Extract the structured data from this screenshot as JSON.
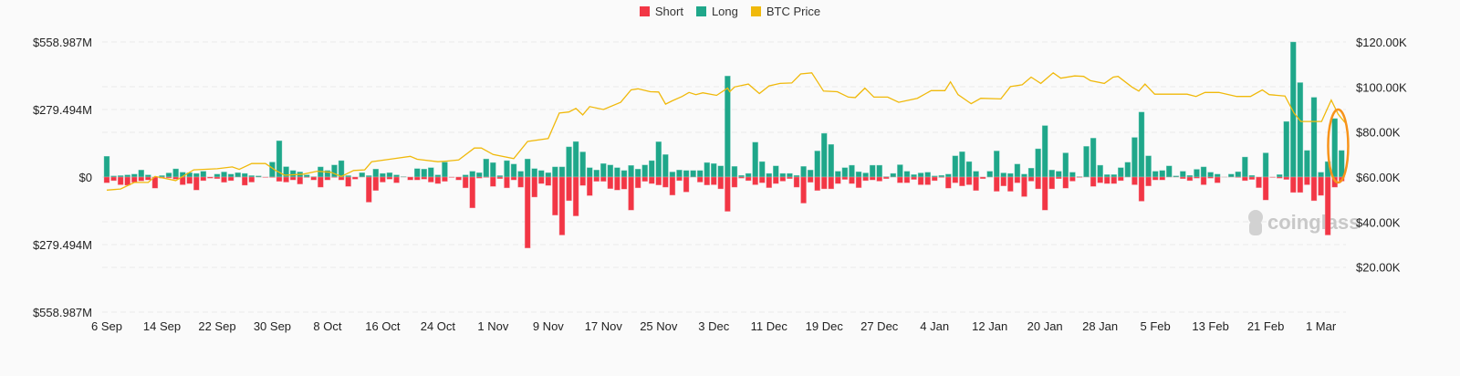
{
  "chart_data": {
    "type": "bar",
    "title": "",
    "legend": {
      "position": "top-center",
      "items": [
        {
          "name": "Short",
          "color": "#f23645"
        },
        {
          "name": "Long",
          "color": "#1fa78a"
        },
        {
          "name": "BTC Price",
          "color": "#f0b90b"
        }
      ]
    },
    "x_tick_labels": [
      "6 Sep",
      "14 Sep",
      "22 Sep",
      "30 Sep",
      "8 Oct",
      "16 Oct",
      "24 Oct",
      "1 Nov",
      "9 Nov",
      "17 Nov",
      "25 Nov",
      "3 Dec",
      "11 Dec",
      "19 Dec",
      "27 Dec",
      "4 Jan",
      "12 Jan",
      "20 Jan",
      "28 Jan",
      "5 Feb",
      "13 Feb",
      "21 Feb",
      "1 Mar"
    ],
    "x_tick_every_days": 8,
    "left_axis": {
      "unit": "USD millions",
      "ylim": [
        -558.987,
        558.987
      ],
      "tick_labels": [
        "$558.987M",
        "$279.494M",
        "$0",
        "$279.494M",
        "$558.987M"
      ],
      "tick_values": [
        558.987,
        279.494,
        0,
        -279.494,
        -558.987
      ]
    },
    "right_axis": {
      "unit": "USD thousands",
      "ylim": [
        0,
        120
      ],
      "tick_labels": [
        "$120.00K",
        "$100.00K",
        "$80.00K",
        "$60.00K",
        "$40.00K",
        "$20.00K"
      ],
      "tick_values": [
        120,
        100,
        80,
        60,
        40,
        20
      ]
    },
    "grid": true,
    "series": [
      {
        "name": "Long",
        "axis": "left",
        "direction": "up",
        "values": [
          86,
          5,
          6,
          9,
          12,
          29,
          9,
          0,
          6,
          17,
          34,
          20,
          18,
          15,
          24,
          0,
          12,
          21,
          12,
          18,
          15,
          6,
          5,
          0,
          62,
          150,
          43,
          27,
          21,
          9,
          2,
          42,
          27,
          50,
          68,
          6,
          0,
          18,
          6,
          33,
          15,
          18,
          9,
          2,
          0,
          35,
          33,
          39,
          9,
          62,
          0,
          0,
          9,
          24,
          18,
          75,
          60,
          6,
          68,
          54,
          24,
          75,
          35,
          27,
          18,
          42,
          42,
          125,
          147,
          104,
          39,
          29,
          56,
          50,
          39,
          27,
          48,
          33,
          50,
          68,
          146,
          93,
          21,
          29,
          27,
          27,
          27,
          60,
          56,
          46,
          418,
          44,
          7,
          15,
          144,
          64,
          15,
          46,
          15,
          15,
          7,
          44,
          29,
          108,
          181,
          135,
          24,
          39,
          49,
          22,
          17,
          49,
          49,
          2,
          15,
          51,
          24,
          10,
          17,
          20,
          5,
          7,
          12,
          88,
          105,
          64,
          24,
          0,
          24,
          108,
          17,
          15,
          54,
          12,
          37,
          117,
          213,
          29,
          24,
          100,
          20,
          2,
          127,
          161,
          49,
          10,
          10,
          39,
          61,
          164,
          269,
          88,
          24,
          27,
          46,
          5,
          24,
          7,
          32,
          42,
          20,
          12,
          0,
          12,
          22,
          83,
          7,
          0,
          100,
          0,
          10,
          230,
          559,
          391,
          110,
          330,
          20,
          64,
          242,
          110
        ]
      },
      {
        "name": "Short",
        "axis": "left",
        "direction": "down",
        "values": [
          24,
          15,
          32,
          34,
          22,
          16,
          12,
          46,
          5,
          4,
          9,
          32,
          27,
          54,
          15,
          5,
          7,
          22,
          15,
          0,
          34,
          21,
          0,
          2,
          2,
          18,
          21,
          12,
          29,
          2,
          12,
          42,
          12,
          2,
          12,
          39,
          9,
          0,
          104,
          56,
          21,
          9,
          24,
          0,
          12,
          12,
          9,
          21,
          27,
          18,
          2,
          12,
          45,
          128,
          5,
          2,
          39,
          7,
          45,
          12,
          42,
          294,
          83,
          27,
          35,
          158,
          240,
          98,
          161,
          35,
          77,
          18,
          18,
          48,
          54,
          50,
          137,
          45,
          18,
          27,
          33,
          42,
          75,
          15,
          62,
          0,
          21,
          33,
          32,
          49,
          142,
          42,
          5,
          15,
          32,
          24,
          44,
          27,
          17,
          7,
          42,
          108,
          22,
          56,
          49,
          49,
          27,
          10,
          27,
          44,
          15,
          12,
          17,
          7,
          0,
          24,
          24,
          10,
          32,
          32,
          15,
          2,
          46,
          24,
          37,
          32,
          56,
          7,
          0,
          59,
          37,
          59,
          24,
          81,
          17,
          49,
          137,
          49,
          7,
          46,
          17,
          2,
          0,
          39,
          24,
          27,
          27,
          15,
          0,
          32,
          100,
          37,
          12,
          12,
          0,
          0,
          7,
          15,
          5,
          32,
          5,
          24,
          0,
          0,
          2,
          15,
          10,
          44,
          95,
          2,
          5,
          10,
          64,
          64,
          32,
          98,
          76,
          240,
          42,
          17
        ]
      },
      {
        "name": "BTC Price",
        "axis": "right",
        "type": "line",
        "points": [
          [
            0,
            54.2
          ],
          [
            2,
            54.7
          ],
          [
            4,
            57.6
          ],
          [
            6,
            57.6
          ],
          [
            7,
            60.3
          ],
          [
            10,
            58.4
          ],
          [
            12.6,
            63.2
          ],
          [
            16,
            63.7
          ],
          [
            18.2,
            64.5
          ],
          [
            19.2,
            63.4
          ],
          [
            21,
            66
          ],
          [
            23,
            66
          ],
          [
            24.5,
            62.9
          ],
          [
            25.8,
            60.8
          ],
          [
            28.5,
            61.3
          ],
          [
            30.5,
            62.6
          ],
          [
            32.5,
            62.1
          ],
          [
            34,
            60.3
          ],
          [
            35.8,
            62.9
          ],
          [
            37.4,
            63.2
          ],
          [
            38.4,
            66.8
          ],
          [
            41,
            67.9
          ],
          [
            44,
            69.2
          ],
          [
            45,
            67.9
          ],
          [
            48,
            66.8
          ],
          [
            49.3,
            67.1
          ],
          [
            51,
            67.6
          ],
          [
            53.3,
            72.9
          ],
          [
            54.3,
            72.9
          ],
          [
            56,
            70
          ],
          [
            59,
            68.2
          ],
          [
            61,
            75.8
          ],
          [
            64,
            77.1
          ],
          [
            65.6,
            88.4
          ],
          [
            67,
            88.9
          ],
          [
            68,
            90.5
          ],
          [
            69,
            87.6
          ],
          [
            70,
            91.3
          ],
          [
            72,
            90
          ],
          [
            74.5,
            93.2
          ],
          [
            76,
            98.7
          ],
          [
            77,
            99.2
          ],
          [
            78.8,
            97.9
          ],
          [
            80,
            97.8
          ],
          [
            81,
            92.4
          ],
          [
            82,
            93.9
          ],
          [
            83.4,
            95.8
          ],
          [
            84.4,
            97.6
          ],
          [
            85.4,
            96.6
          ],
          [
            86.4,
            97.4
          ],
          [
            88.4,
            96.3
          ],
          [
            90,
            99.5
          ],
          [
            90.3,
            97.9
          ],
          [
            91,
            100
          ],
          [
            93,
            101.3
          ],
          [
            94.6,
            97.1
          ],
          [
            96,
            100.5
          ],
          [
            97.6,
            101.6
          ],
          [
            99.3,
            101.8
          ],
          [
            100.6,
            105.8
          ],
          [
            102.2,
            106.3
          ],
          [
            103.9,
            98.2
          ],
          [
            105.9,
            97.9
          ],
          [
            107.5,
            95.5
          ],
          [
            108.5,
            95.3
          ],
          [
            109.9,
            99.5
          ],
          [
            111.2,
            95.5
          ],
          [
            113.2,
            95.5
          ],
          [
            114.8,
            93.2
          ],
          [
            117.5,
            95
          ],
          [
            119.5,
            98.4
          ],
          [
            121.5,
            98.4
          ],
          [
            122.3,
            102.3
          ],
          [
            123.4,
            96.6
          ],
          [
            125.3,
            92.6
          ],
          [
            126.7,
            95
          ],
          [
            129.6,
            94.7
          ],
          [
            131,
            100.2
          ],
          [
            132.7,
            101
          ],
          [
            134,
            104.4
          ],
          [
            135.4,
            101.6
          ],
          [
            137.2,
            106.3
          ],
          [
            138.3,
            103.9
          ],
          [
            140.3,
            104.9
          ],
          [
            141.6,
            104.7
          ],
          [
            142.6,
            102.8
          ],
          [
            144.6,
            101.6
          ],
          [
            145.9,
            104.4
          ],
          [
            146.6,
            104.7
          ],
          [
            148.6,
            100
          ],
          [
            149.6,
            98.2
          ],
          [
            150.5,
            101.3
          ],
          [
            151.9,
            96.8
          ],
          [
            156.6,
            96.8
          ],
          [
            157.9,
            95.8
          ],
          [
            159.2,
            97.6
          ],
          [
            161.2,
            97.6
          ],
          [
            163.8,
            95.8
          ],
          [
            165.8,
            95.8
          ],
          [
            167.5,
            98.7
          ],
          [
            168.5,
            96.6
          ],
          [
            170.8,
            96
          ],
          [
            172.1,
            88.4
          ],
          [
            173.1,
            84.7
          ],
          [
            176.1,
            84.7
          ],
          [
            177.5,
            94.2
          ],
          [
            178.5,
            87.9
          ],
          [
            179.5,
            84.2
          ]
        ]
      }
    ],
    "annotation": {
      "type": "ellipse",
      "color": "#f7931a",
      "around_bar_indices": [
        178,
        179
      ]
    },
    "watermark": "coinglass"
  }
}
